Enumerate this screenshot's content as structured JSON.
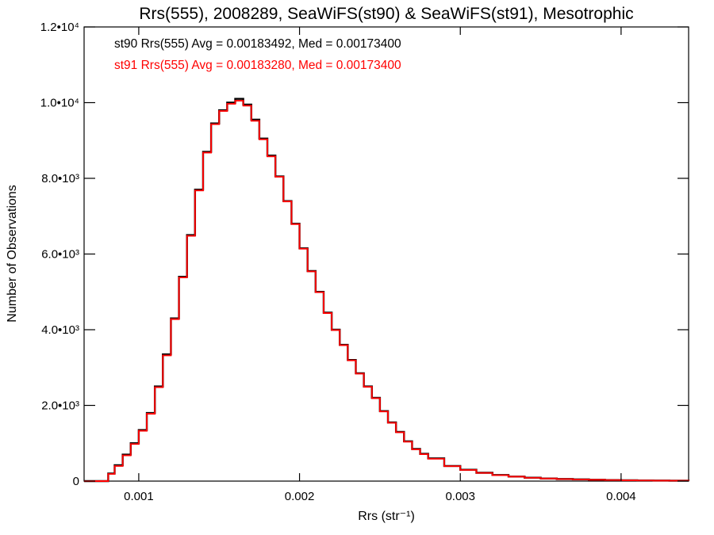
{
  "chart_data": {
    "type": "line",
    "title": "Rrs(555), 2008289, SeaWiFS(st90) & SeaWiFS(st91), Mesotrophic",
    "xlabel": "Rrs (str⁻¹)",
    "ylabel": "Number of Observations",
    "xlim": [
      0.00066,
      0.00442
    ],
    "ylim": [
      0,
      12000
    ],
    "x_ticks": [
      {
        "value": 0.001,
        "label": "0.001"
      },
      {
        "value": 0.002,
        "label": "0.002"
      },
      {
        "value": 0.003,
        "label": "0.003"
      },
      {
        "value": 0.004,
        "label": "0.004"
      }
    ],
    "y_ticks": [
      {
        "value": 0,
        "label": "0"
      },
      {
        "value": 2000,
        "label": "2.0•10³"
      },
      {
        "value": 4000,
        "label": "4.0•10³"
      },
      {
        "value": 6000,
        "label": "6.0•10³"
      },
      {
        "value": 8000,
        "label": "8.0•10³"
      },
      {
        "value": 10000,
        "label": "1.0•10⁴"
      },
      {
        "value": 12000,
        "label": "1.2•10⁴"
      }
    ],
    "grid": false,
    "legend_position": "top-left",
    "series": [
      {
        "name": "st90 Rrs(555) Avg = 0.00183492, Med = 0.00173400",
        "color": "#000000",
        "step": true,
        "points": [
          [
            0.00066,
            0
          ],
          [
            0.0008,
            0
          ],
          [
            0.00081,
            200
          ],
          [
            0.00085,
            420
          ],
          [
            0.0009,
            700
          ],
          [
            0.00095,
            1000
          ],
          [
            0.001,
            1350
          ],
          [
            0.00105,
            1800
          ],
          [
            0.0011,
            2500
          ],
          [
            0.00115,
            3350
          ],
          [
            0.0012,
            4300
          ],
          [
            0.00125,
            5400
          ],
          [
            0.0013,
            6500
          ],
          [
            0.00135,
            7700
          ],
          [
            0.0014,
            8700
          ],
          [
            0.00145,
            9450
          ],
          [
            0.0015,
            9800
          ],
          [
            0.00155,
            10000
          ],
          [
            0.0016,
            10100
          ],
          [
            0.00165,
            9950
          ],
          [
            0.0017,
            9550
          ],
          [
            0.00175,
            9050
          ],
          [
            0.0018,
            8600
          ],
          [
            0.00185,
            8050
          ],
          [
            0.0019,
            7400
          ],
          [
            0.00195,
            6800
          ],
          [
            0.002,
            6150
          ],
          [
            0.00205,
            5550
          ],
          [
            0.0021,
            5000
          ],
          [
            0.00215,
            4450
          ],
          [
            0.0022,
            4000
          ],
          [
            0.00225,
            3600
          ],
          [
            0.0023,
            3200
          ],
          [
            0.00235,
            2850
          ],
          [
            0.0024,
            2500
          ],
          [
            0.00245,
            2200
          ],
          [
            0.0025,
            1850
          ],
          [
            0.00255,
            1550
          ],
          [
            0.0026,
            1300
          ],
          [
            0.00265,
            1050
          ],
          [
            0.0027,
            850
          ],
          [
            0.00275,
            720
          ],
          [
            0.0028,
            600
          ],
          [
            0.0029,
            400
          ],
          [
            0.003,
            300
          ],
          [
            0.0031,
            220
          ],
          [
            0.0032,
            160
          ],
          [
            0.0033,
            120
          ],
          [
            0.0034,
            90
          ],
          [
            0.0035,
            70
          ],
          [
            0.0036,
            55
          ],
          [
            0.0037,
            45
          ],
          [
            0.0038,
            35
          ],
          [
            0.0039,
            28
          ],
          [
            0.004,
            22
          ],
          [
            0.0041,
            18
          ],
          [
            0.0042,
            14
          ],
          [
            0.0043,
            12
          ],
          [
            0.00442,
            10
          ]
        ]
      },
      {
        "name": "st91 Rrs(555) Avg = 0.00183280, Med = 0.00173400",
        "color": "#ff0000",
        "step": true,
        "points": [
          [
            0.00066,
            0
          ],
          [
            0.0008,
            0
          ],
          [
            0.00081,
            190
          ],
          [
            0.00085,
            400
          ],
          [
            0.0009,
            680
          ],
          [
            0.00095,
            980
          ],
          [
            0.001,
            1330
          ],
          [
            0.00105,
            1780
          ],
          [
            0.0011,
            2480
          ],
          [
            0.00115,
            3320
          ],
          [
            0.0012,
            4280
          ],
          [
            0.00125,
            5380
          ],
          [
            0.0013,
            6480
          ],
          [
            0.00135,
            7680
          ],
          [
            0.0014,
            8680
          ],
          [
            0.00145,
            9430
          ],
          [
            0.0015,
            9780
          ],
          [
            0.00155,
            9970
          ],
          [
            0.0016,
            10050
          ],
          [
            0.00165,
            9920
          ],
          [
            0.0017,
            9520
          ],
          [
            0.00175,
            9030
          ],
          [
            0.0018,
            8580
          ],
          [
            0.00185,
            8040
          ],
          [
            0.0019,
            7390
          ],
          [
            0.00195,
            6790
          ],
          [
            0.002,
            6140
          ],
          [
            0.00205,
            5540
          ],
          [
            0.0021,
            4990
          ],
          [
            0.00215,
            4440
          ],
          [
            0.0022,
            3990
          ],
          [
            0.00225,
            3590
          ],
          [
            0.0023,
            3190
          ],
          [
            0.00235,
            2840
          ],
          [
            0.0024,
            2490
          ],
          [
            0.00245,
            2190
          ],
          [
            0.0025,
            1840
          ],
          [
            0.00255,
            1540
          ],
          [
            0.0026,
            1290
          ],
          [
            0.00265,
            1040
          ],
          [
            0.0027,
            840
          ],
          [
            0.00275,
            710
          ],
          [
            0.0028,
            590
          ],
          [
            0.0029,
            395
          ],
          [
            0.003,
            295
          ],
          [
            0.0031,
            215
          ],
          [
            0.0032,
            155
          ],
          [
            0.0033,
            118
          ],
          [
            0.0034,
            88
          ],
          [
            0.0035,
            68
          ],
          [
            0.0036,
            54
          ],
          [
            0.0037,
            44
          ],
          [
            0.0038,
            34
          ],
          [
            0.0039,
            27
          ],
          [
            0.004,
            21
          ],
          [
            0.0041,
            17
          ],
          [
            0.0042,
            13
          ],
          [
            0.0043,
            11
          ],
          [
            0.00442,
            9
          ]
        ]
      }
    ]
  }
}
